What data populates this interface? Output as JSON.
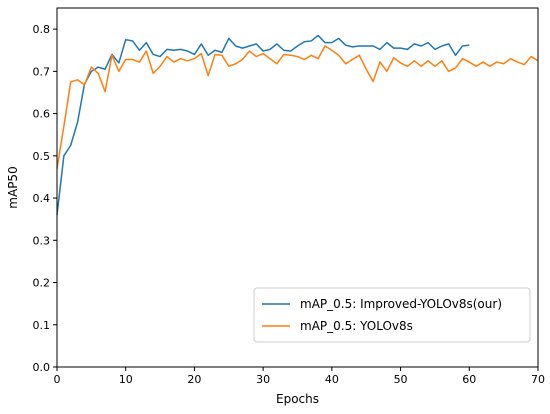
{
  "chart_data": {
    "type": "line",
    "title": "",
    "xlabel": "Epochs",
    "ylabel": "mAP50",
    "xlim": [
      0,
      70
    ],
    "ylim": [
      0.0,
      0.85
    ],
    "x_ticks": [
      0,
      10,
      20,
      30,
      40,
      50,
      60,
      70
    ],
    "y_ticks": [
      0.0,
      0.1,
      0.2,
      0.3,
      0.4,
      0.5,
      0.6,
      0.7,
      0.8
    ],
    "grid": false,
    "legend_position": "lower-right",
    "series": [
      {
        "name": "mAP_0.5: Improved-YOLOv8s(our)",
        "color": "#1f77b4",
        "x": [
          0,
          1,
          2,
          3,
          4,
          5,
          6,
          7,
          8,
          9,
          10,
          11,
          12,
          13,
          14,
          15,
          16,
          17,
          18,
          19,
          20,
          21,
          22,
          23,
          24,
          25,
          26,
          27,
          28,
          29,
          30,
          31,
          32,
          33,
          34,
          35,
          36,
          37,
          38,
          39,
          40,
          41,
          42,
          43,
          44,
          45,
          46,
          47,
          48,
          49,
          50,
          51,
          52,
          53,
          54,
          55,
          56,
          57,
          58,
          59,
          60
        ],
        "y": [
          0.36,
          0.5,
          0.525,
          0.58,
          0.67,
          0.7,
          0.71,
          0.705,
          0.74,
          0.72,
          0.775,
          0.772,
          0.75,
          0.768,
          0.74,
          0.735,
          0.752,
          0.75,
          0.752,
          0.748,
          0.74,
          0.765,
          0.738,
          0.75,
          0.745,
          0.778,
          0.76,
          0.755,
          0.76,
          0.765,
          0.748,
          0.752,
          0.765,
          0.75,
          0.748,
          0.76,
          0.77,
          0.772,
          0.785,
          0.768,
          0.768,
          0.778,
          0.762,
          0.758,
          0.76,
          0.76,
          0.76,
          0.752,
          0.768,
          0.755,
          0.755,
          0.752,
          0.765,
          0.76,
          0.768,
          0.752,
          0.76,
          0.765,
          0.738,
          0.76,
          0.762
        ]
      },
      {
        "name": "mAP_0.5: YOLOv8s",
        "color": "#ff7f0e",
        "x": [
          0,
          1,
          2,
          3,
          4,
          5,
          6,
          7,
          8,
          9,
          10,
          11,
          12,
          13,
          14,
          15,
          16,
          17,
          18,
          19,
          20,
          21,
          22,
          23,
          24,
          25,
          26,
          27,
          28,
          29,
          30,
          31,
          32,
          33,
          34,
          35,
          36,
          37,
          38,
          39,
          40,
          41,
          42,
          43,
          44,
          45,
          46,
          47,
          48,
          49,
          50,
          51,
          52,
          53,
          54,
          55,
          56,
          57,
          58,
          59,
          60,
          61,
          62,
          63,
          64,
          65,
          66,
          67,
          68,
          69,
          70
        ],
        "y": [
          0.47,
          0.57,
          0.675,
          0.68,
          0.668,
          0.71,
          0.695,
          0.652,
          0.738,
          0.7,
          0.728,
          0.728,
          0.722,
          0.748,
          0.695,
          0.712,
          0.735,
          0.722,
          0.73,
          0.725,
          0.73,
          0.742,
          0.69,
          0.74,
          0.738,
          0.712,
          0.718,
          0.728,
          0.748,
          0.735,
          0.742,
          0.73,
          0.718,
          0.74,
          0.738,
          0.735,
          0.728,
          0.738,
          0.73,
          0.76,
          0.75,
          0.738,
          0.718,
          0.728,
          0.738,
          0.705,
          0.676,
          0.722,
          0.7,
          0.732,
          0.72,
          0.712,
          0.725,
          0.712,
          0.725,
          0.712,
          0.725,
          0.7,
          0.708,
          0.73,
          0.722,
          0.712,
          0.722,
          0.712,
          0.722,
          0.718,
          0.73,
          0.722,
          0.716,
          0.735,
          0.725
        ]
      }
    ]
  }
}
